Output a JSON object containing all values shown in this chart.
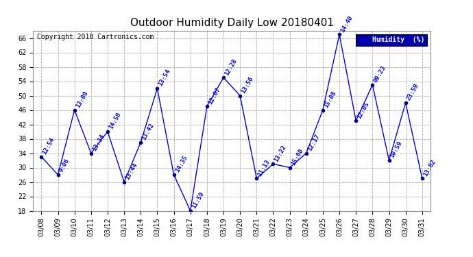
{
  "title": "Outdoor Humidity Daily Low 20180401",
  "copyright": "Copyright 2018 Cartronics.com",
  "legend_label": "Humidity  (%)",
  "dates": [
    "03/08",
    "03/09",
    "03/10",
    "03/11",
    "03/12",
    "03/13",
    "03/14",
    "03/15",
    "03/16",
    "03/17",
    "03/18",
    "03/19",
    "03/20",
    "03/21",
    "03/22",
    "03/23",
    "03/24",
    "03/25",
    "03/26",
    "03/27",
    "03/28",
    "03/29",
    "03/30",
    "03/31"
  ],
  "values": [
    33,
    28,
    46,
    34,
    40,
    26,
    37,
    52,
    28,
    18,
    47,
    55,
    50,
    27,
    31,
    30,
    34,
    46,
    67,
    43,
    53,
    32,
    48,
    27
  ],
  "times": [
    "12:54",
    "9:06",
    "13:00",
    "13:34",
    "14:50",
    "13:44",
    "13:42",
    "13:54",
    "14:35",
    "11:59",
    "12:07",
    "12:28",
    "13:56",
    "11:13",
    "13:22",
    "15:00",
    "12:17",
    "15:08",
    "14:40",
    "12:05",
    "09:23",
    "10:59",
    "23:59",
    "13:82"
  ],
  "line_color": "#0000cc",
  "marker_color": "#000080",
  "bg_color": "#ffffff",
  "grid_color": "#aaaaaa",
  "title_color": "#000000",
  "copyright_color": "#000000",
  "time_label_color": "#0000cc",
  "legend_bg": "#0000aa",
  "legend_fg": "#ffffff",
  "ylim": [
    18,
    68
  ],
  "yticks": [
    18,
    22,
    26,
    30,
    34,
    38,
    42,
    46,
    50,
    54,
    58,
    62,
    66
  ],
  "title_fontsize": 11,
  "tick_fontsize": 7,
  "time_fontsize": 6.5,
  "copyright_fontsize": 7
}
